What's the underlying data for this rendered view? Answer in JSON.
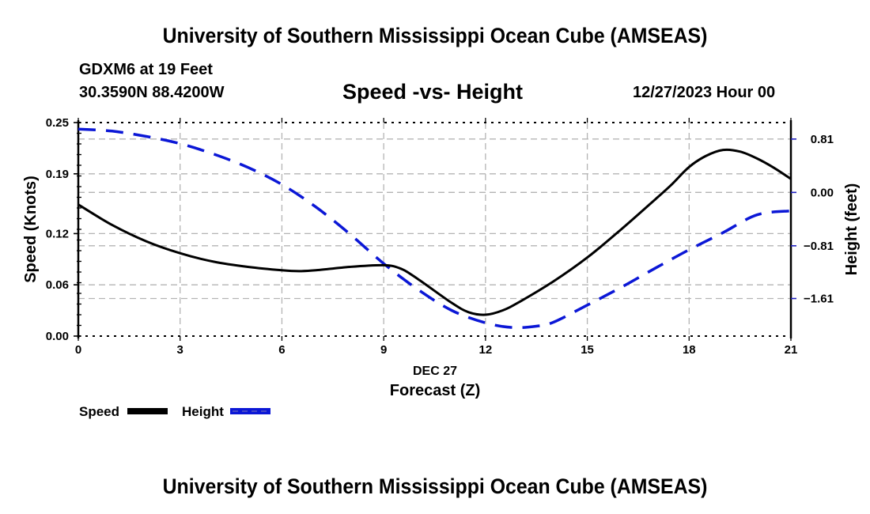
{
  "header": {
    "main_title": "University of Southern Mississippi Ocean Cube (AMSEAS)",
    "station": "GDXM6 at 19 Feet",
    "coords": "30.3590N  88.4200W",
    "chart_title": "Speed -vs- Height",
    "date": "12/27/2023 Hour 00"
  },
  "footer": {
    "title": "University of Southern Mississippi Ocean Cube (AMSEAS)"
  },
  "chart_data": {
    "type": "line",
    "title": "Speed -vs- Height",
    "xlabel": "Forecast (Z)",
    "xsublabel": "DEC 27",
    "ylabel": "Speed (Knots)",
    "y2label": "Height (feet)",
    "xlim": [
      0,
      21
    ],
    "ylim": [
      0,
      0.25
    ],
    "y2lim": [
      -2.18,
      1.06
    ],
    "x_ticks": [
      0,
      3,
      6,
      9,
      12,
      15,
      18,
      21
    ],
    "x_tick_labels": [
      "0",
      "3",
      "6",
      "9",
      "12",
      "15",
      "18",
      "21"
    ],
    "y_ticks": [
      0.0,
      0.06,
      0.12,
      0.19,
      0.25
    ],
    "y_tick_labels": [
      "0.00",
      "0.06",
      "0.12",
      "0.19",
      "0.25"
    ],
    "y2_ticks": [
      0.81,
      0.0,
      -0.81,
      -1.61
    ],
    "y2_tick_labels": [
      "0.81",
      "0.00",
      "−0.81",
      "−1.61"
    ],
    "grid": true,
    "legend": "bottom-left",
    "series": [
      {
        "name": "Speed",
        "axis": "left",
        "color": "#000000",
        "style": "solid",
        "x": [
          0,
          1,
          2,
          3,
          4,
          5,
          6,
          6.5,
          7,
          8,
          9,
          9.5,
          10,
          11,
          11.5,
          12,
          12.5,
          13,
          14,
          15,
          16,
          17,
          17.5,
          18,
          18.5,
          19,
          19.5,
          20,
          20.5,
          21
        ],
        "values": [
          0.154,
          0.13,
          0.111,
          0.097,
          0.087,
          0.081,
          0.077,
          0.076,
          0.077,
          0.081,
          0.083,
          0.079,
          0.067,
          0.039,
          0.028,
          0.025,
          0.03,
          0.04,
          0.064,
          0.092,
          0.125,
          0.16,
          0.178,
          0.198,
          0.211,
          0.218,
          0.216,
          0.208,
          0.197,
          0.184
        ]
      },
      {
        "name": "Height",
        "axis": "right",
        "color": "#0b17d6",
        "style": "dashed",
        "x": [
          0,
          1,
          2,
          3,
          4,
          5,
          6,
          7,
          8,
          9,
          10,
          11,
          12,
          12.8,
          13.5,
          14,
          15,
          16,
          17,
          18,
          19,
          20,
          21
        ],
        "values": [
          0.96,
          0.93,
          0.85,
          0.74,
          0.58,
          0.38,
          0.12,
          -0.22,
          -0.63,
          -1.08,
          -1.47,
          -1.79,
          -1.98,
          -2.05,
          -2.03,
          -1.97,
          -1.71,
          -1.44,
          -1.15,
          -0.87,
          -0.61,
          -0.34,
          -0.28
        ]
      }
    ]
  }
}
